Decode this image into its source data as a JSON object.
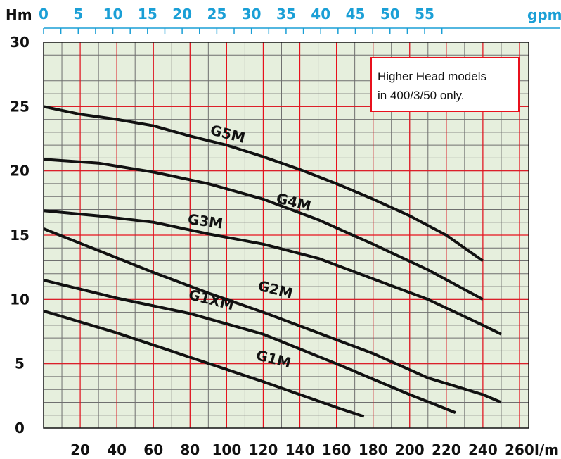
{
  "chart_data": {
    "type": "line",
    "title": "",
    "xlabel": "",
    "ylabel": "",
    "x_unit": "l/m",
    "y_unit": "Hm",
    "x2_unit": "gpm",
    "xlim": [
      0,
      265
    ],
    "ylim": [
      0,
      30
    ],
    "x_ticks": [
      "20",
      "40",
      "60",
      "80",
      "100",
      "120",
      "140",
      "160",
      "180",
      "200",
      "220",
      "240",
      "260"
    ],
    "y_ticks": [
      "0",
      "5",
      "10",
      "15",
      "20",
      "25",
      "30"
    ],
    "x2_ticks": [
      "0",
      "5",
      "10",
      "15",
      "20",
      "25",
      "30",
      "35",
      "40",
      "45",
      "50",
      "55"
    ],
    "grid": true,
    "annotation": [
      "Higher Head models",
      "in 400/3/50 only."
    ],
    "series": [
      {
        "name": "G5M",
        "x": [
          0,
          20,
          40,
          60,
          80,
          100,
          120,
          140,
          160,
          180,
          200,
          220,
          240
        ],
        "y": [
          25.0,
          24.4,
          24.0,
          23.5,
          22.7,
          22.0,
          21.1,
          20.1,
          19.0,
          17.8,
          16.5,
          15.0,
          13.0
        ]
      },
      {
        "name": "G4M",
        "x": [
          0,
          30,
          60,
          90,
          120,
          150,
          180,
          210,
          240
        ],
        "y": [
          20.9,
          20.6,
          19.9,
          19.0,
          17.8,
          16.2,
          14.3,
          12.3,
          10.0
        ]
      },
      {
        "name": "G3M",
        "x": [
          0,
          30,
          60,
          90,
          120,
          150,
          180,
          210,
          240,
          250
        ],
        "y": [
          16.9,
          16.5,
          16.0,
          15.1,
          14.3,
          13.2,
          11.6,
          10.0,
          8.0,
          7.3
        ]
      },
      {
        "name": "G2M",
        "x": [
          0,
          30,
          60,
          90,
          120,
          150,
          180,
          210,
          240,
          250
        ],
        "y": [
          15.5,
          13.8,
          12.1,
          10.5,
          9.0,
          7.4,
          5.8,
          3.9,
          2.6,
          2.0
        ]
      },
      {
        "name": "G1XM",
        "x": [
          0,
          40,
          80,
          120,
          160,
          200,
          225
        ],
        "y": [
          11.5,
          10.1,
          8.9,
          7.3,
          5.0,
          2.6,
          1.2
        ]
      },
      {
        "name": "G1M",
        "x": [
          0,
          40,
          80,
          120,
          160,
          175
        ],
        "y": [
          9.1,
          7.4,
          5.5,
          3.6,
          1.6,
          0.9
        ]
      }
    ],
    "curve_labels": [
      {
        "text": "G5M",
        "x": 100,
        "y": 22.5,
        "angle": 14
      },
      {
        "text": "G4M",
        "x": 136,
        "y": 17.2,
        "angle": 14
      },
      {
        "text": "G3M",
        "x": 88,
        "y": 15.7,
        "angle": 8
      },
      {
        "text": "G2M",
        "x": 126,
        "y": 10.4,
        "angle": 14
      },
      {
        "text": "G1XM",
        "x": 91,
        "y": 9.6,
        "angle": 14
      },
      {
        "text": "G1M",
        "x": 125,
        "y": 5.0,
        "angle": 14
      }
    ],
    "colors": {
      "background": "#e6efdd",
      "grid_major": "#e8101c",
      "grid_minor": "#6f6f6f",
      "curve": "#111111",
      "gpm_axis": "#1a9fd6",
      "note_border": "#e8101c"
    }
  }
}
